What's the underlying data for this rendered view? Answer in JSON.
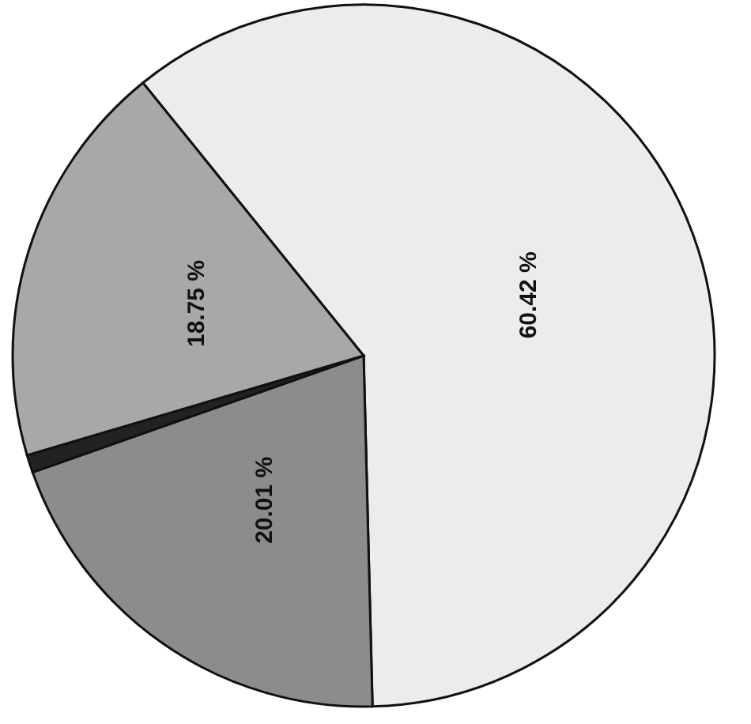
{
  "chart_data": {
    "type": "pie",
    "categories": [
      null,
      null,
      null,
      null
    ],
    "values": [
      60.42,
      20.01,
      0.82,
      18.75
    ],
    "value_labels": [
      "60.42 %",
      "20.01 %",
      null,
      "18.75 %"
    ],
    "colors": [
      "#ececec",
      "#8c8c8c",
      "#222222",
      "#a8a8a8"
    ],
    "legend": false
  }
}
